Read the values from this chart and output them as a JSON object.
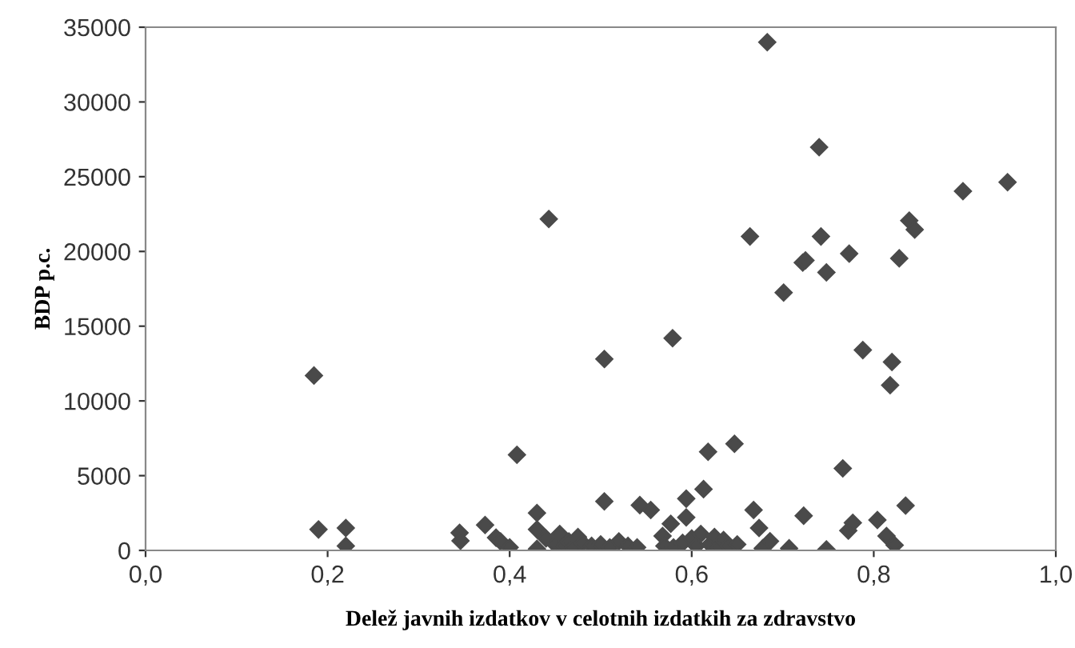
{
  "chart_data": {
    "type": "scatter",
    "xlabel": "Delež javnih izdatkov v celotnih izdatkih za zdravstvo",
    "ylabel": "BDP p.c.",
    "series": [
      {
        "color": "#4a4a4a",
        "x": [
          0.185,
          0.19,
          0.22,
          0.22,
          0.345,
          0.346,
          0.373,
          0.385,
          0.39,
          0.4,
          0.408,
          0.43,
          0.43,
          0.43,
          0.443,
          0.44,
          0.45,
          0.455,
          0.46,
          0.465,
          0.47,
          0.475,
          0.48,
          0.49,
          0.5,
          0.51,
          0.52,
          0.53,
          0.54,
          0.504,
          0.504,
          0.543,
          0.555,
          0.568,
          0.577,
          0.57,
          0.58,
          0.59,
          0.594,
          0.594,
          0.6,
          0.605,
          0.61,
          0.613,
          0.618,
          0.62,
          0.625,
          0.63,
          0.635,
          0.64,
          0.647,
          0.65,
          0.579,
          0.664,
          0.668,
          0.674,
          0.678,
          0.683,
          0.686,
          0.701,
          0.707,
          0.722,
          0.723,
          0.725,
          0.74,
          0.742,
          0.748,
          0.748,
          0.766,
          0.772,
          0.773,
          0.777,
          0.788,
          0.804,
          0.814,
          0.818,
          0.82,
          0.823,
          0.828,
          0.835,
          0.839,
          0.845,
          0.898,
          0.947
        ],
        "values": [
          11700,
          1400,
          1500,
          300,
          1180,
          640,
          1700,
          850,
          600,
          200,
          6400,
          1400,
          2500,
          100,
          22170,
          800,
          400,
          1100,
          300,
          600,
          200,
          900,
          500,
          300,
          400,
          200,
          600,
          300,
          200,
          12800,
          3280,
          3030,
          2700,
          960,
          1780,
          300,
          200,
          500,
          3460,
          2210,
          800,
          300,
          1100,
          4100,
          6600,
          400,
          900,
          200,
          700,
          300,
          7130,
          400,
          14200,
          21000,
          2700,
          1500,
          140,
          34000,
          610,
          17250,
          140,
          19250,
          2320,
          19400,
          26970,
          21000,
          18600,
          70,
          5490,
          1320,
          19850,
          1850,
          13400,
          2030,
          960,
          11050,
          12600,
          350,
          19540,
          3000,
          22060,
          21460,
          24030,
          24630
        ]
      }
    ],
    "marker": "diamond",
    "xlim": [
      0,
      1
    ],
    "xticks": [
      {
        "value": 0,
        "label": "0,0"
      },
      {
        "value": 0.2,
        "label": "0,2"
      },
      {
        "value": 0.4,
        "label": "0,4"
      },
      {
        "value": 0.6,
        "label": "0,6"
      },
      {
        "value": 0.8,
        "label": "0,8"
      },
      {
        "value": 1,
        "label": "1,0"
      }
    ],
    "ylim": [
      0,
      35000
    ],
    "yticks": [
      0,
      5000,
      10000,
      15000,
      20000,
      25000,
      30000,
      35000
    ],
    "grid": false,
    "legend": false
  }
}
